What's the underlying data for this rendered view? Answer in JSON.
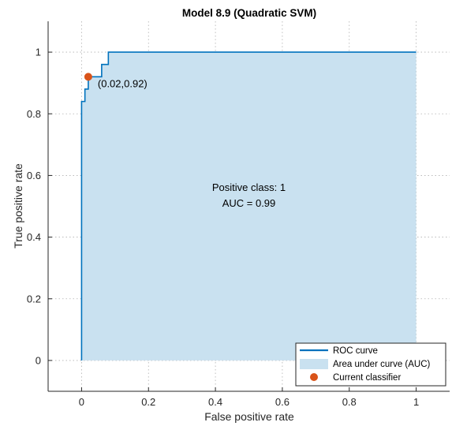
{
  "chart_data": {
    "type": "line",
    "title": "Model 8.9 (Quadratic SVM)",
    "xlabel": "False positive rate",
    "ylabel": "True positive rate",
    "xlim": [
      -0.1,
      1.1
    ],
    "ylim": [
      -0.1,
      1.1
    ],
    "xticks": [
      0,
      0.2,
      0.4,
      0.6,
      0.8,
      1
    ],
    "yticks": [
      0,
      0.2,
      0.4,
      0.6,
      0.8,
      1
    ],
    "xtick_labels": [
      "0",
      "0.2",
      "0.4",
      "0.6",
      "0.8",
      "1"
    ],
    "ytick_labels": [
      "0",
      "0.2",
      "0.4",
      "0.6",
      "0.8",
      "1"
    ],
    "grid": true,
    "roc_curve": {
      "x": [
        0,
        0,
        0.01,
        0.01,
        0.02,
        0.02,
        0.04,
        0.06,
        0.06,
        0.08,
        0.08,
        1
      ],
      "y": [
        0,
        0.84,
        0.84,
        0.88,
        0.88,
        0.92,
        0.92,
        0.92,
        0.96,
        0.96,
        1,
        1
      ]
    },
    "current_classifier": {
      "x": 0.02,
      "y": 0.92,
      "label": "(0.02,0.92)"
    },
    "annotation": [
      "Positive class: 1",
      "AUC = 0.99"
    ],
    "legend": {
      "position": "bottom-right",
      "entries": [
        "ROC curve",
        "Area under curve (AUC)",
        "Current classifier"
      ]
    },
    "colors": {
      "line": "#0072bd",
      "area": "#c9e1f0",
      "marker": "#d95319",
      "grid": "#b0b0b0",
      "axis": "#262626"
    }
  }
}
